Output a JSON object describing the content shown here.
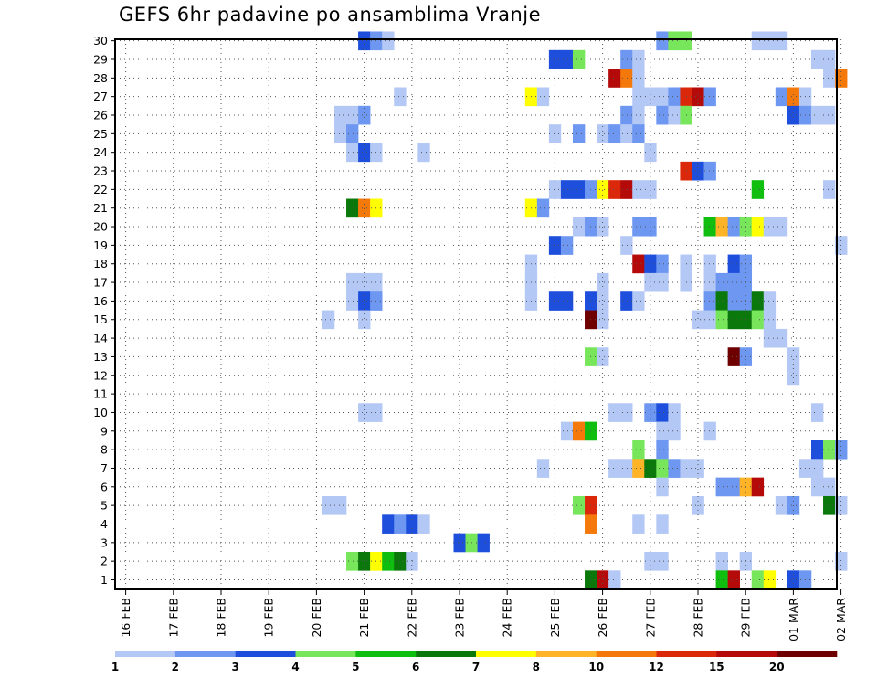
{
  "title": "GEFS 6hr padavine po ansamblima Vranje",
  "chart_data": {
    "type": "heatmap",
    "title": "GEFS 6hr padavine po ansamblima Vranje",
    "xlabel": "",
    "ylabel": "",
    "x_tick_labels": [
      "16 FEB",
      "17 FEB",
      "18 FEB",
      "19 FEB",
      "20 FEB",
      "21 FEB",
      "22 FEB",
      "23 FEB",
      "24 FEB",
      "25 FEB",
      "26 FEB",
      "27 FEB",
      "28 FEB",
      "29 FEB",
      "01 MAR",
      "02 MAR"
    ],
    "y_tick_labels": [
      "1",
      "2",
      "3",
      "4",
      "5",
      "6",
      "7",
      "8",
      "9",
      "10",
      "11",
      "12",
      "13",
      "14",
      "15",
      "16",
      "17",
      "18",
      "19",
      "20",
      "21",
      "22",
      "23",
      "24",
      "25",
      "26",
      "27",
      "28",
      "29",
      "30"
    ],
    "x_unit": "6-hour step from 16 FEB 00Z",
    "x_range": [
      0,
      61
    ],
    "y_range": [
      0.5,
      30.5
    ],
    "grid": true,
    "legend_position": "bottom",
    "legend": {
      "colors": [
        "#b4c8f5",
        "#6d97f0",
        "#1e4fdc",
        "#78e65a",
        "#10be10",
        "#0a780a",
        "#ffff00",
        "#ffb428",
        "#f5780a",
        "#dc280a",
        "#b40a0a",
        "#6e0000"
      ],
      "labels": [
        "1",
        "2",
        "3",
        "4",
        "5",
        "6",
        "7",
        "8",
        "10",
        "12",
        "15",
        "20"
      ]
    },
    "cells": [
      [
        30,
        20,
        3
      ],
      [
        30,
        21,
        2
      ],
      [
        30,
        22,
        1
      ],
      [
        30,
        45,
        2
      ],
      [
        30,
        46,
        4
      ],
      [
        30,
        47,
        4
      ],
      [
        30,
        53,
        1
      ],
      [
        30,
        54,
        1
      ],
      [
        30,
        55,
        1
      ],
      [
        29,
        36,
        3
      ],
      [
        29,
        37,
        3
      ],
      [
        29,
        38,
        4
      ],
      [
        29,
        42,
        2
      ],
      [
        29,
        43,
        1
      ],
      [
        29,
        58,
        1
      ],
      [
        29,
        59,
        1
      ],
      [
        28,
        41,
        11
      ],
      [
        28,
        42,
        9
      ],
      [
        28,
        43,
        1
      ],
      [
        28,
        59,
        1
      ],
      [
        28,
        60,
        9
      ],
      [
        27,
        23,
        1
      ],
      [
        27,
        34,
        7
      ],
      [
        27,
        35,
        1
      ],
      [
        27,
        43,
        1
      ],
      [
        27,
        44,
        1
      ],
      [
        27,
        45,
        1
      ],
      [
        27,
        46,
        2
      ],
      [
        27,
        47,
        10
      ],
      [
        27,
        48,
        11
      ],
      [
        27,
        49,
        2
      ],
      [
        27,
        55,
        2
      ],
      [
        27,
        56,
        9
      ],
      [
        27,
        57,
        1
      ],
      [
        26,
        18,
        1
      ],
      [
        26,
        19,
        1
      ],
      [
        26,
        20,
        2
      ],
      [
        26,
        42,
        2
      ],
      [
        26,
        43,
        1
      ],
      [
        26,
        45,
        2
      ],
      [
        26,
        46,
        1
      ],
      [
        26,
        47,
        4
      ],
      [
        26,
        56,
        3
      ],
      [
        26,
        57,
        2
      ],
      [
        26,
        58,
        1
      ],
      [
        26,
        59,
        1
      ],
      [
        25,
        18,
        1
      ],
      [
        25,
        19,
        2
      ],
      [
        25,
        36,
        1
      ],
      [
        25,
        38,
        2
      ],
      [
        25,
        40,
        1
      ],
      [
        25,
        41,
        2
      ],
      [
        25,
        42,
        1
      ],
      [
        25,
        43,
        2
      ],
      [
        24,
        19,
        1
      ],
      [
        24,
        20,
        3
      ],
      [
        24,
        21,
        1
      ],
      [
        24,
        25,
        1
      ],
      [
        24,
        44,
        1
      ],
      [
        23,
        47,
        10
      ],
      [
        23,
        48,
        3
      ],
      [
        23,
        49,
        2
      ],
      [
        22,
        36,
        1
      ],
      [
        22,
        37,
        3
      ],
      [
        22,
        38,
        3
      ],
      [
        22,
        39,
        2
      ],
      [
        22,
        40,
        7
      ],
      [
        22,
        41,
        10
      ],
      [
        22,
        42,
        11
      ],
      [
        22,
        43,
        1
      ],
      [
        22,
        44,
        1
      ],
      [
        22,
        53,
        5
      ],
      [
        22,
        59,
        1
      ],
      [
        21,
        19,
        6
      ],
      [
        21,
        20,
        9
      ],
      [
        21,
        21,
        7
      ],
      [
        21,
        34,
        7
      ],
      [
        21,
        35,
        2
      ],
      [
        20,
        38,
        1
      ],
      [
        20,
        39,
        2
      ],
      [
        20,
        40,
        1
      ],
      [
        20,
        43,
        2
      ],
      [
        20,
        44,
        2
      ],
      [
        20,
        49,
        5
      ],
      [
        20,
        50,
        8
      ],
      [
        20,
        51,
        2
      ],
      [
        20,
        52,
        4
      ],
      [
        20,
        53,
        7
      ],
      [
        20,
        54,
        1
      ],
      [
        20,
        55,
        1
      ],
      [
        19,
        36,
        3
      ],
      [
        19,
        37,
        2
      ],
      [
        19,
        42,
        1
      ],
      [
        19,
        60,
        1
      ],
      [
        18,
        34,
        1
      ],
      [
        18,
        43,
        11
      ],
      [
        18,
        44,
        3
      ],
      [
        18,
        45,
        2
      ],
      [
        18,
        47,
        1
      ],
      [
        18,
        49,
        1
      ],
      [
        18,
        51,
        3
      ],
      [
        18,
        52,
        2
      ],
      [
        17,
        19,
        1
      ],
      [
        17,
        20,
        1
      ],
      [
        17,
        21,
        1
      ],
      [
        17,
        34,
        1
      ],
      [
        17,
        40,
        1
      ],
      [
        17,
        44,
        1
      ],
      [
        17,
        45,
        1
      ],
      [
        17,
        47,
        1
      ],
      [
        17,
        49,
        1
      ],
      [
        17,
        50,
        2
      ],
      [
        17,
        51,
        2
      ],
      [
        17,
        52,
        2
      ],
      [
        16,
        19,
        1
      ],
      [
        16,
        20,
        3
      ],
      [
        16,
        21,
        2
      ],
      [
        16,
        34,
        1
      ],
      [
        16,
        36,
        3
      ],
      [
        16,
        37,
        3
      ],
      [
        16,
        39,
        3
      ],
      [
        16,
        40,
        1
      ],
      [
        16,
        42,
        3
      ],
      [
        16,
        43,
        1
      ],
      [
        16,
        49,
        2
      ],
      [
        16,
        50,
        6
      ],
      [
        16,
        51,
        2
      ],
      [
        16,
        52,
        2
      ],
      [
        16,
        53,
        6
      ],
      [
        16,
        54,
        1
      ],
      [
        15,
        17,
        1
      ],
      [
        15,
        20,
        1
      ],
      [
        15,
        39,
        12
      ],
      [
        15,
        40,
        1
      ],
      [
        15,
        48,
        1
      ],
      [
        15,
        49,
        1
      ],
      [
        15,
        50,
        4
      ],
      [
        15,
        51,
        6
      ],
      [
        15,
        52,
        6
      ],
      [
        15,
        53,
        4
      ],
      [
        15,
        54,
        1
      ],
      [
        14,
        54,
        1
      ],
      [
        14,
        55,
        1
      ],
      [
        13,
        39,
        4
      ],
      [
        13,
        40,
        1
      ],
      [
        13,
        51,
        12
      ],
      [
        13,
        52,
        2
      ],
      [
        13,
        56,
        1
      ],
      [
        12,
        56,
        1
      ],
      [
        10,
        20,
        1
      ],
      [
        10,
        21,
        1
      ],
      [
        10,
        41,
        1
      ],
      [
        10,
        42,
        1
      ],
      [
        10,
        44,
        2
      ],
      [
        10,
        45,
        3
      ],
      [
        10,
        46,
        1
      ],
      [
        10,
        58,
        1
      ],
      [
        9,
        37,
        1
      ],
      [
        9,
        38,
        9
      ],
      [
        9,
        39,
        5
      ],
      [
        9,
        45,
        1
      ],
      [
        9,
        46,
        1
      ],
      [
        9,
        49,
        1
      ],
      [
        8,
        43,
        4
      ],
      [
        8,
        45,
        2
      ],
      [
        8,
        58,
        3
      ],
      [
        8,
        59,
        4
      ],
      [
        8,
        60,
        2
      ],
      [
        7,
        35,
        1
      ],
      [
        7,
        41,
        1
      ],
      [
        7,
        42,
        1
      ],
      [
        7,
        43,
        8
      ],
      [
        7,
        44,
        6
      ],
      [
        7,
        45,
        4
      ],
      [
        7,
        46,
        2
      ],
      [
        7,
        47,
        1
      ],
      [
        7,
        48,
        1
      ],
      [
        7,
        57,
        1
      ],
      [
        7,
        58,
        1
      ],
      [
        6,
        45,
        1
      ],
      [
        6,
        50,
        2
      ],
      [
        6,
        51,
        2
      ],
      [
        6,
        52,
        8
      ],
      [
        6,
        53,
        11
      ],
      [
        6,
        58,
        1
      ],
      [
        6,
        59,
        1
      ],
      [
        5,
        17,
        1
      ],
      [
        5,
        18,
        1
      ],
      [
        5,
        38,
        4
      ],
      [
        5,
        39,
        10
      ],
      [
        5,
        48,
        1
      ],
      [
        5,
        55,
        1
      ],
      [
        5,
        56,
        2
      ],
      [
        5,
        59,
        6
      ],
      [
        5,
        60,
        1
      ],
      [
        4,
        22,
        3
      ],
      [
        4,
        23,
        2
      ],
      [
        4,
        24,
        3
      ],
      [
        4,
        25,
        1
      ],
      [
        4,
        39,
        9
      ],
      [
        4,
        43,
        1
      ],
      [
        4,
        45,
        1
      ],
      [
        3,
        28,
        3
      ],
      [
        3,
        29,
        4
      ],
      [
        3,
        30,
        3
      ],
      [
        2,
        19,
        4
      ],
      [
        2,
        20,
        6
      ],
      [
        2,
        21,
        7
      ],
      [
        2,
        22,
        5
      ],
      [
        2,
        23,
        6
      ],
      [
        2,
        24,
        1
      ],
      [
        2,
        44,
        1
      ],
      [
        2,
        45,
        1
      ],
      [
        2,
        50,
        1
      ],
      [
        2,
        52,
        1
      ],
      [
        2,
        60,
        1
      ],
      [
        1,
        39,
        6
      ],
      [
        1,
        40,
        11
      ],
      [
        1,
        41,
        1
      ],
      [
        1,
        50,
        5
      ],
      [
        1,
        51,
        11
      ],
      [
        1,
        53,
        4
      ],
      [
        1,
        54,
        7
      ],
      [
        1,
        56,
        3
      ],
      [
        1,
        57,
        2
      ]
    ]
  }
}
